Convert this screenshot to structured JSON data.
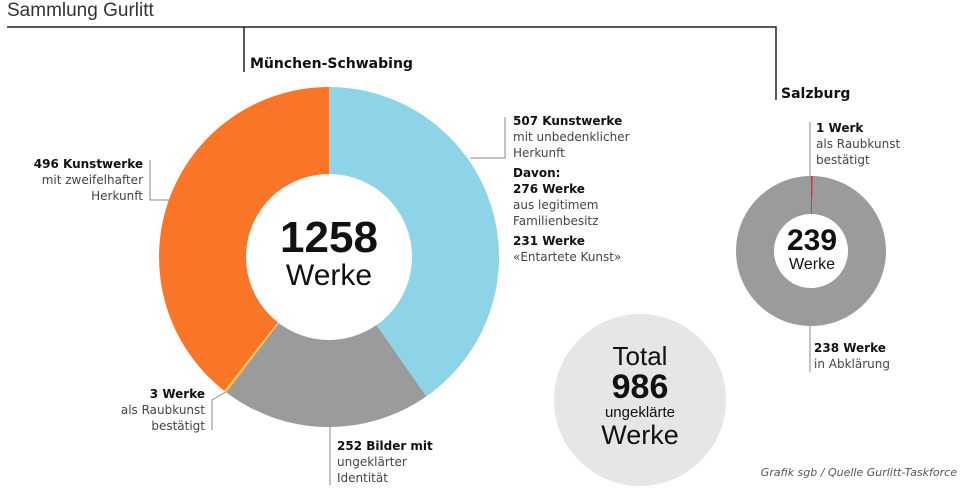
{
  "title": "Sammlung Gurlitt",
  "credit": "Grafik sgb / Quelle Gurlitt-Taskforce",
  "colors": {
    "blue": "#8dd4e8",
    "orange": "#f97628",
    "gray": "#9b9b9b",
    "yellow": "#f6c544",
    "red": "#d8343b",
    "total_bg": "#e6e6e6"
  },
  "muenchen": {
    "heading": "München-Schwabing",
    "center_number": "1258",
    "center_unit": "Werke",
    "labels": {
      "unbedenklich": {
        "bold": "507 Kunstwerke",
        "line1": "mit unbedenklicher",
        "line2": "Herkunft"
      },
      "davon": "Davon:",
      "familie": {
        "bold": "276 Werke",
        "line1": "aus legitimem",
        "line2": "Familienbesitz"
      },
      "entartet": {
        "bold": "231 Werke",
        "line1": "«Entartete Kunst»"
      },
      "zweifelhaft": {
        "bold": "496 Kunstwerke",
        "line1": "mit zweifelhafter",
        "line2": "Herkunft"
      },
      "raubkunst": {
        "bold": "3 Werke",
        "line1": "als Raubkunst",
        "line2": "bestätigt"
      },
      "identitaet": {
        "bold": "252 Bilder mit",
        "line1": "ungeklärter",
        "line2": "Identität"
      }
    }
  },
  "salzburg": {
    "heading": "Salzburg",
    "center_number": "239",
    "center_unit": "Werke",
    "labels": {
      "raubkunst": {
        "bold": "1 Werk",
        "line1": "als Raubkunst",
        "line2": "bestätigt"
      },
      "abklaerung": {
        "bold": "238 Werke",
        "line1": "in Abklärung"
      }
    }
  },
  "total": {
    "label": "Total",
    "number": "986",
    "line1": "ungeklärte",
    "line2": "Werke"
  },
  "chart_data": [
    {
      "type": "pie",
      "title": "München-Schwabing",
      "total": 1258,
      "categories": [
        "mit unbedenklicher Herkunft",
        "mit ungeklärter Identität",
        "als Raubkunst bestätigt",
        "mit zweifelhafter Herkunft"
      ],
      "values": [
        507,
        252,
        3,
        496
      ],
      "colors": [
        "#8dd4e8",
        "#9b9b9b",
        "#f6c544",
        "#f97628"
      ]
    },
    {
      "type": "pie",
      "title": "Salzburg",
      "total": 239,
      "categories": [
        "als Raubkunst bestätigt",
        "in Abklärung"
      ],
      "values": [
        1,
        238
      ],
      "colors": [
        "#d8343b",
        "#9b9b9b"
      ]
    }
  ]
}
